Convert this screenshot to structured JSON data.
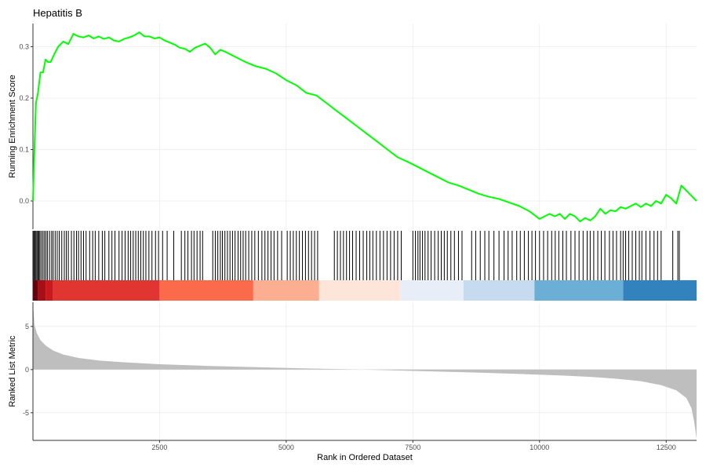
{
  "chart_data": {
    "type": "line",
    "title": "Hepatitis B",
    "xlabel": "Rank in Ordered Dataset",
    "xlim": [
      1,
      13100
    ],
    "x_ticks": [
      2500,
      5000,
      7500,
      10000,
      12500
    ],
    "panels": {
      "running_score": {
        "ylabel": "Running Enrichment Score",
        "ylim": [
          -0.055,
          0.345
        ],
        "y_ticks": [
          0.0,
          0.1,
          0.2,
          0.3
        ],
        "series": [
          {
            "color": "#00ff00",
            "x": [
              1,
              30,
              60,
              100,
              150,
              200,
              250,
              300,
              350,
              420,
              500,
              600,
              700,
              800,
              900,
              1000,
              1100,
              1200,
              1300,
              1400,
              1500,
              1600,
              1700,
              1800,
              1900,
              2000,
              2100,
              2200,
              2300,
              2400,
              2500,
              2600,
              2700,
              2800,
              2900,
              3000,
              3100,
              3200,
              3300,
              3400,
              3500,
              3600,
              3700,
              3800,
              3900,
              4000,
              4200,
              4400,
              4600,
              4800,
              5000,
              5200,
              5400,
              5600,
              5800,
              6000,
              6200,
              6400,
              6600,
              6800,
              7000,
              7200,
              7400,
              7600,
              7800,
              8000,
              8200,
              8400,
              8600,
              8800,
              9000,
              9200,
              9400,
              9600,
              9800,
              10000,
              10100,
              10200,
              10300,
              10400,
              10500,
              10600,
              10700,
              10800,
              10900,
              11000,
              11100,
              11200,
              11300,
              11400,
              11500,
              11600,
              11700,
              11800,
              11900,
              12000,
              12100,
              12200,
              12300,
              12400,
              12500,
              12600,
              12700,
              12800,
              12900,
              13000,
              13100
            ],
            "y": [
              0.0,
              0.1,
              0.19,
              0.21,
              0.25,
              0.25,
              0.275,
              0.27,
              0.27,
              0.285,
              0.3,
              0.31,
              0.305,
              0.325,
              0.32,
              0.318,
              0.322,
              0.316,
              0.32,
              0.315,
              0.318,
              0.312,
              0.31,
              0.315,
              0.318,
              0.322,
              0.328,
              0.32,
              0.32,
              0.316,
              0.318,
              0.312,
              0.308,
              0.304,
              0.298,
              0.296,
              0.29,
              0.298,
              0.302,
              0.306,
              0.298,
              0.285,
              0.294,
              0.29,
              0.285,
              0.28,
              0.27,
              0.262,
              0.257,
              0.248,
              0.235,
              0.225,
              0.21,
              0.205,
              0.19,
              0.175,
              0.16,
              0.145,
              0.13,
              0.115,
              0.1,
              0.085,
              0.076,
              0.066,
              0.056,
              0.046,
              0.036,
              0.03,
              0.022,
              0.014,
              0.008,
              0.004,
              -0.003,
              -0.01,
              -0.02,
              -0.035,
              -0.03,
              -0.025,
              -0.03,
              -0.025,
              -0.035,
              -0.025,
              -0.03,
              -0.04,
              -0.033,
              -0.038,
              -0.03,
              -0.015,
              -0.025,
              -0.018,
              -0.02,
              -0.012,
              -0.015,
              -0.01,
              -0.005,
              -0.012,
              -0.005,
              -0.01,
              0.0,
              -0.005,
              0.012,
              0.005,
              -0.005,
              0.03,
              0.02,
              0.01,
              0.0
            ]
          }
        ]
      },
      "hits": {
        "ranks": [
          5,
          20,
          40,
          60,
          80,
          100,
          120,
          140,
          170,
          200,
          230,
          260,
          290,
          330,
          370,
          400,
          440,
          480,
          520,
          570,
          620,
          660,
          700,
          760,
          810,
          860,
          900,
          950,
          1000,
          1050,
          1120,
          1180,
          1230,
          1300,
          1370,
          1420,
          1500,
          1560,
          1620,
          1700,
          1760,
          1820,
          1880,
          1930,
          1980,
          2030,
          2080,
          2130,
          2180,
          2230,
          2290,
          2350,
          2420,
          2480,
          2560,
          2650,
          2780,
          2930,
          3000,
          3060,
          3130,
          3180,
          3240,
          3300,
          3350,
          3550,
          3600,
          3650,
          3700,
          3740,
          3790,
          3840,
          3890,
          3940,
          3990,
          4050,
          4100,
          4150,
          4200,
          4260,
          4320,
          4380,
          4450,
          4520,
          4580,
          4640,
          4700,
          4760,
          4830,
          4910,
          5020,
          5080,
          5140,
          5200,
          5260,
          5320,
          5380,
          5440,
          5500,
          5560,
          5620,
          5950,
          6010,
          6070,
          6130,
          6190,
          6250,
          6310,
          6380,
          6450,
          6520,
          6590,
          6650,
          6710,
          6780,
          6850,
          6920,
          6990,
          7060,
          7130,
          7200,
          7270,
          7500,
          7550,
          7600,
          7640,
          7690,
          7740,
          7800,
          7860,
          7930,
          8000,
          8060,
          8120,
          8180,
          8250,
          8320,
          8400,
          8470,
          8660,
          8740,
          8830,
          8920,
          9000,
          9100,
          9200,
          9300,
          9380,
          9460,
          9550,
          9620,
          9700,
          9780,
          9850,
          9920,
          10000,
          10080,
          10160,
          10240,
          10310,
          10380,
          10460,
          10530,
          10620,
          10700,
          10780,
          10860,
          10940,
          11000,
          11070,
          11150,
          11220,
          11290,
          11380,
          11450,
          11520,
          11600,
          11650,
          11700,
          11760,
          11830,
          11900,
          11970,
          12020,
          12100,
          12180,
          12260,
          12330,
          12400,
          12630,
          12730,
          12760
        ]
      },
      "rank_bands": [
        {
          "start": 1,
          "end": 100,
          "color": "#67000d"
        },
        {
          "start": 100,
          "end": 250,
          "color": "#a50f15"
        },
        {
          "start": 250,
          "end": 400,
          "color": "#cb181d"
        },
        {
          "start": 400,
          "end": 2500,
          "color": "#e03530"
        },
        {
          "start": 2500,
          "end": 4350,
          "color": "#fb6a4a"
        },
        {
          "start": 4350,
          "end": 5650,
          "color": "#fcae91"
        },
        {
          "start": 5650,
          "end": 7250,
          "color": "#fee5d9"
        },
        {
          "start": 7250,
          "end": 8500,
          "color": "#e8eef8"
        },
        {
          "start": 8500,
          "end": 9900,
          "color": "#c6dbef"
        },
        {
          "start": 9900,
          "end": 11650,
          "color": "#6baed6"
        },
        {
          "start": 11650,
          "end": 13100,
          "color": "#3182bd"
        }
      ],
      "ranked_metric": {
        "ylabel": "Ranked List Metric",
        "ylim": [
          -8.2,
          7.8
        ],
        "y_ticks": [
          -5,
          0,
          5
        ],
        "fill": "#bebebe",
        "x": [
          1,
          30,
          80,
          150,
          250,
          400,
          600,
          900,
          1300,
          1800,
          2500,
          3500,
          4500,
          5500,
          6500,
          7500,
          8500,
          9500,
          10500,
          11000,
          11500,
          12000,
          12400,
          12700,
          12900,
          13000,
          13050,
          13100
        ],
        "y": [
          7.8,
          5.2,
          4.2,
          3.4,
          2.8,
          2.2,
          1.75,
          1.35,
          1.05,
          0.85,
          0.62,
          0.42,
          0.26,
          0.12,
          0.0,
          -0.15,
          -0.3,
          -0.48,
          -0.7,
          -0.85,
          -1.05,
          -1.35,
          -1.8,
          -2.4,
          -3.3,
          -4.5,
          -6.0,
          -8.0
        ]
      }
    }
  }
}
